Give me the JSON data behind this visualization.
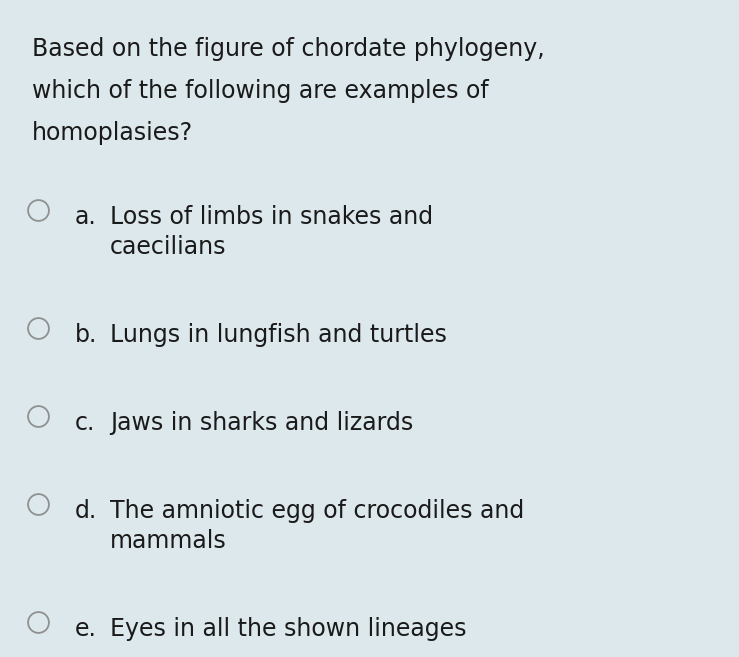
{
  "background_color": "#dde8ec",
  "text_color": "#1a1a1a",
  "title_lines": [
    "Based on the figure of chordate phylogeny,",
    "which of the following are examples of",
    "homoplasies?"
  ],
  "options": [
    {
      "letter": "a.",
      "lines": [
        "Loss of limbs in snakes and",
        "caecilians"
      ]
    },
    {
      "letter": "b.",
      "lines": [
        "Lungs in lungfish and turtles"
      ]
    },
    {
      "letter": "c.",
      "lines": [
        "Jaws in sharks and lizards"
      ]
    },
    {
      "letter": "d.",
      "lines": [
        "The amniotic egg of crocodiles and",
        "mammals"
      ]
    },
    {
      "letter": "e.",
      "lines": [
        "Eyes in all the shown lineages"
      ]
    }
  ],
  "title_fontsize": 17,
  "option_fontsize": 17,
  "figsize": [
    7.39,
    6.57
  ],
  "dpi": 100
}
